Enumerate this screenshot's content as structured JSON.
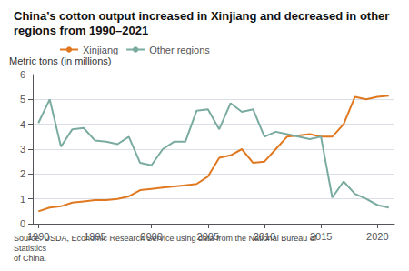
{
  "chart_data": {
    "type": "line",
    "title": "China’s cotton output increased in Xinjiang and decreased in other regions from 1990–2021",
    "ylabel": "Metric tons (in millions)",
    "annotations": [
      "Source: USDA, Economic Research Service using data from the National Bureau of Statistics\nof China."
    ],
    "x": [
      1990,
      1991,
      1992,
      1993,
      1994,
      1995,
      1996,
      1997,
      1998,
      1999,
      2000,
      2001,
      2002,
      2003,
      2004,
      2005,
      2006,
      2007,
      2008,
      2009,
      2010,
      2011,
      2012,
      2013,
      2014,
      2015,
      2016,
      2017,
      2018,
      2019,
      2020,
      2021
    ],
    "series": [
      {
        "name": "Xinjiang",
        "color": "#E07820",
        "values": [
          0.5,
          0.65,
          0.7,
          0.85,
          0.9,
          0.95,
          0.95,
          1.0,
          1.1,
          1.35,
          1.4,
          1.45,
          1.5,
          1.55,
          1.6,
          1.9,
          2.65,
          2.75,
          3.0,
          2.45,
          2.5,
          3.0,
          3.5,
          3.55,
          3.6,
          3.5,
          3.5,
          4.0,
          5.1,
          5.0,
          5.1,
          5.15
        ]
      },
      {
        "name": "Other regions",
        "color": "#7AABA0",
        "values": [
          4.05,
          5.0,
          3.1,
          3.8,
          3.85,
          3.35,
          3.3,
          3.2,
          3.5,
          2.45,
          2.35,
          3.0,
          3.3,
          3.3,
          4.55,
          4.6,
          3.8,
          4.85,
          4.5,
          4.6,
          3.5,
          3.7,
          3.6,
          3.5,
          3.4,
          3.5,
          1.05,
          1.7,
          1.2,
          1.0,
          0.75,
          0.65
        ]
      }
    ],
    "xlim": [
      1989.5,
      2021.5
    ],
    "xticks": [
      1990,
      1995,
      2000,
      2005,
      2010,
      2015,
      2020
    ],
    "ylim": [
      0,
      6
    ],
    "yticks": [
      0,
      1,
      2,
      3,
      4,
      5,
      6
    ],
    "grid": true,
    "legend": "upper left"
  }
}
